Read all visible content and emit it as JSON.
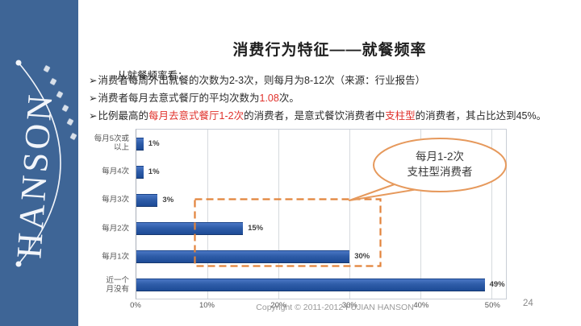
{
  "slide": {
    "page_number": "24",
    "copyright": "Copyright © 2011-2012 FUJIAN HANSON"
  },
  "logo": {
    "brand": "HANSON",
    "arc_glyph_count": 6
  },
  "title": "消费行为特征——就餐频率",
  "intro": "从就餐频率看：",
  "bullet_marker": "➢",
  "bullets": [
    {
      "segments": [
        {
          "text": "消费者每周外出就餐的次数为2-3次，则每月为8-12次（来源：行业报告）",
          "red": false
        }
      ]
    },
    {
      "segments": [
        {
          "text": "消费者每月去意式餐厅的平均次数为",
          "red": false
        },
        {
          "text": "1.08",
          "red": true
        },
        {
          "text": "次。",
          "red": false
        }
      ]
    },
    {
      "segments": [
        {
          "text": "比例最高的",
          "red": false
        },
        {
          "text": "每月去意式餐厅1-2次",
          "red": true
        },
        {
          "text": "的消费者，是意式餐饮消费者中",
          "red": false
        },
        {
          "text": "支柱型",
          "red": true
        },
        {
          "text": "的消费者，其占比达到45%。",
          "red": false
        }
      ]
    }
  ],
  "chart_data": {
    "type": "bar",
    "orientation": "horizontal",
    "categories": [
      "每月5次或以上",
      "每月4次",
      "每月3次",
      "每月2次",
      "每月1次",
      "近一个月没有"
    ],
    "categories_display": [
      [
        "每月5次或",
        "以上"
      ],
      [
        "每月4次"
      ],
      [
        "每月3次"
      ],
      [
        "每月2次"
      ],
      [
        "每月1次"
      ],
      [
        "近一个",
        "月没有"
      ]
    ],
    "values": [
      1,
      1,
      3,
      15,
      30,
      49
    ],
    "value_labels": [
      "1%",
      "1%",
      "3%",
      "15%",
      "30%",
      "49%"
    ],
    "x_ticks": [
      "0%",
      "10%",
      "20%",
      "30%",
      "40%",
      "50%"
    ],
    "x_tick_values": [
      0,
      10,
      20,
      30,
      40,
      50
    ],
    "xlim": [
      0,
      52
    ],
    "grid": true,
    "title": "",
    "xlabel": "",
    "ylabel": "",
    "annotation": {
      "callout_line1": "每月1-2次",
      "callout_line2": "支柱型消费者",
      "highlight_rows": [
        "每月2次",
        "每月1次"
      ]
    }
  },
  "colors": {
    "sidebar_blue": "#3e6596",
    "bar_blue": "#2e5ca8",
    "bar_blue_dark": "#1d4b96",
    "annotation_orange": "#e2833b",
    "callout_orange": "#e6995c",
    "accent_red": "#e0312b",
    "axis_gray": "#555555"
  }
}
